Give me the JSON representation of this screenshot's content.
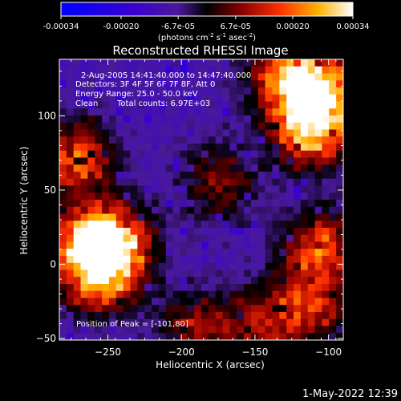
{
  "chart_data": {
    "type": "heatmap",
    "title": "Reconstructed RHESSI Image",
    "xlabel": "Heliocentric X (arcsec)",
    "ylabel": "Heliocentric Y (arcsec)",
    "xlim": [
      -283,
      -90
    ],
    "ylim": [
      -51,
      138
    ],
    "xticks": [
      -250,
      -200,
      -150,
      -100
    ],
    "yticks": [
      -50,
      0,
      50,
      100
    ],
    "colorbar": {
      "min": -0.00034,
      "max": 0.00034,
      "tick_values": [
        -0.00034,
        -0.0002,
        -6.7e-05,
        6.7e-05,
        0.0002,
        0.00034
      ],
      "tick_labels": [
        "-0.00034",
        "-0.00020",
        "-6.7e-05",
        "6.7e-05",
        "0.00020",
        "0.00034"
      ],
      "unit_label": "(photons cm",
      "unit_exp1": "-2",
      "unit_mid": " s",
      "unit_exp2": "-1",
      "unit_mid2": " asec",
      "unit_exp3": "-2",
      "unit_end": ")"
    },
    "annotations": {
      "time_range": "2-Aug-2005 14:41:40.000 to 14:47:40.000",
      "detectors": "Detectors: 3F 4F 5F 6F 7F 8F, Att 0",
      "energy_range": "Energy Range: 25.0 - 50.0 keV",
      "clean": "Clean",
      "total_counts": "Total counts: 6.97E+03",
      "peak": "Position of Peak = [-101,80]"
    },
    "peak_position": [
      -101,
      80
    ],
    "bright_regions": [
      {
        "x": -112,
        "y": 92,
        "strength": 1.0
      },
      {
        "x": -105,
        "y": 118,
        "strength": 0.8
      },
      {
        "x": -130,
        "y": 128,
        "strength": 0.7
      },
      {
        "x": -262,
        "y": 10,
        "strength": 0.9
      },
      {
        "x": -245,
        "y": 15,
        "strength": 0.8
      },
      {
        "x": -270,
        "y": 70,
        "strength": 0.7
      },
      {
        "x": -255,
        "y": -10,
        "strength": 0.6
      },
      {
        "x": -105,
        "y": 10,
        "strength": 0.7
      },
      {
        "x": -115,
        "y": -30,
        "strength": 0.6
      },
      {
        "x": -175,
        "y": 55,
        "strength": 0.45
      },
      {
        "x": -190,
        "y": -42,
        "strength": 0.45
      },
      {
        "x": -150,
        "y": -40,
        "strength": 0.4
      }
    ],
    "timestamp": "1-May-2022 12:39"
  }
}
